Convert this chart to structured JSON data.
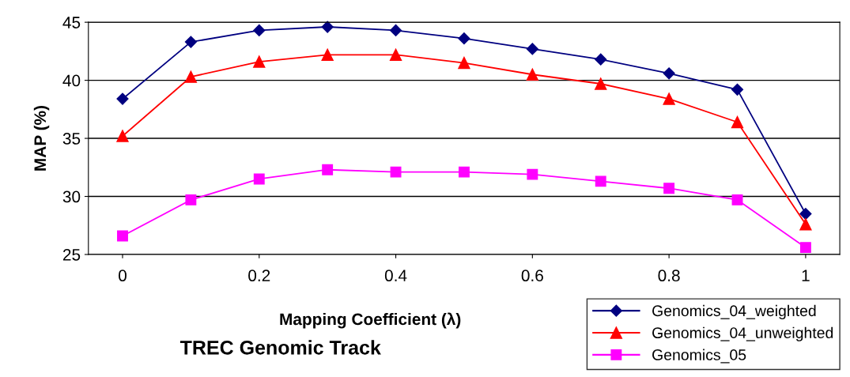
{
  "chart_data": {
    "type": "line",
    "title": "TREC Genomic Track",
    "xlabel": "Mapping Coefficient (λ)",
    "ylabel": "MAP (%)",
    "x": [
      0,
      0.1,
      0.2,
      0.3,
      0.4,
      0.5,
      0.6,
      0.7,
      0.8,
      0.9,
      1
    ],
    "series": [
      {
        "name": "Genomics_04_weighted",
        "color": "#000080",
        "marker": "diamond",
        "values": [
          38.4,
          43.3,
          44.3,
          44.6,
          44.3,
          43.6,
          42.7,
          41.8,
          40.6,
          39.2,
          28.5
        ]
      },
      {
        "name": "Genomics_04_unweighted",
        "color": "#ff0000",
        "marker": "triangle",
        "values": [
          35.2,
          40.3,
          41.6,
          42.2,
          42.2,
          41.5,
          40.5,
          39.7,
          38.4,
          36.4,
          27.6
        ]
      },
      {
        "name": "Genomics_05",
        "color": "#ff00ff",
        "marker": "square",
        "values": [
          26.6,
          29.7,
          31.5,
          32.3,
          32.1,
          32.1,
          31.9,
          31.3,
          30.7,
          29.7,
          25.6
        ]
      }
    ],
    "xlim": [
      -0.05,
      1.05
    ],
    "xticks": [
      0,
      0.2,
      0.4,
      0.6,
      0.8,
      1
    ],
    "ylim": [
      25,
      45
    ],
    "yticks": [
      25,
      30,
      35,
      40,
      45
    ],
    "grid": "y",
    "legend": "bottom right",
    "line_style": "solid"
  }
}
